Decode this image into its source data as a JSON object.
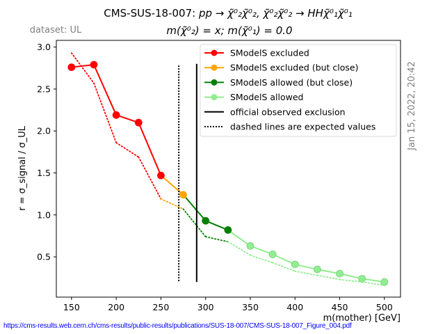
{
  "header": {
    "dataset_label": "dataset: UL",
    "timestamp": "Jan 15, 2022, 20:42",
    "source_url": "https://cms-results.web.cern.ch/cms-results/public-results/publications/SUS-18-007/CMS-SUS-18-007_Figure_004.pdf"
  },
  "colors": {
    "excluded": "#ff0000",
    "excluded_close": "#ffa500",
    "allowed_close": "#008000",
    "allowed": "#90ee90",
    "official": "#000000"
  },
  "chart_data": {
    "type": "line",
    "title_line1_prefix": "CMS-SUS-18-007: ",
    "title_line1_math": "pp → χ̃⁰₂χ̃⁰₂, χ̃⁰₂χ̃⁰₂ → HHχ̃⁰₁χ̃⁰₁",
    "title_line2": "m(χ̃⁰₂) = x; m(χ̃⁰₁) = 0.0",
    "xlabel": "m(mother) [GeV]",
    "ylabel": "r = σ_signal / σ_UL",
    "xlim": [
      133,
      518
    ],
    "ylim": [
      0.02,
      3.08
    ],
    "xticks": [
      150,
      200,
      250,
      300,
      350,
      400,
      450,
      500
    ],
    "yticks": [
      0.5,
      1.0,
      1.5,
      2.0,
      2.5,
      3.0
    ],
    "ytick_labels": [
      "0.5",
      "1.0",
      "1.5",
      "2.0",
      "2.5",
      "3.0"
    ],
    "grid": false,
    "legend_position": "top-right",
    "legend": [
      {
        "label": "SModelS excluded",
        "style": "marker-line",
        "color_key": "excluded"
      },
      {
        "label": "SModelS excluded (but close)",
        "style": "marker-line",
        "color_key": "excluded_close"
      },
      {
        "label": "SModelS allowed (but close)",
        "style": "marker-line",
        "color_key": "allowed_close"
      },
      {
        "label": "SModelS allowed",
        "style": "marker-line",
        "color_key": "allowed"
      },
      {
        "label": "official observed exclusion",
        "style": "solid",
        "color_key": "official"
      },
      {
        "label": "dashed lines are expected values",
        "style": "dotted",
        "color_key": "official"
      }
    ],
    "observed": {
      "x": [
        150,
        175,
        200,
        225,
        250,
        275,
        300,
        325,
        350,
        375,
        400,
        425,
        450,
        475,
        500
      ],
      "y": [
        2.76,
        2.79,
        2.19,
        2.1,
        1.47,
        1.24,
        0.93,
        0.82,
        0.63,
        0.53,
        0.41,
        0.35,
        0.3,
        0.24,
        0.2
      ],
      "status": [
        "excluded",
        "excluded",
        "excluded",
        "excluded",
        "excluded",
        "excluded_close",
        "allowed_close",
        "allowed_close",
        "allowed",
        "allowed",
        "allowed",
        "allowed",
        "allowed",
        "allowed",
        "allowed"
      ]
    },
    "expected": {
      "x": [
        150,
        175,
        200,
        225,
        250,
        275,
        300,
        325,
        350,
        375,
        400,
        425,
        450,
        475,
        500
      ],
      "y": [
        2.93,
        2.57,
        1.86,
        1.69,
        1.19,
        1.07,
        0.74,
        0.68,
        0.52,
        0.43,
        0.33,
        0.28,
        0.23,
        0.2,
        0.16
      ]
    },
    "official_observed_exclusion": {
      "x": 290,
      "y_range": [
        0.2,
        2.8
      ]
    },
    "official_expected_exclusion": {
      "x": 270,
      "y_range": [
        0.2,
        2.78
      ]
    }
  }
}
